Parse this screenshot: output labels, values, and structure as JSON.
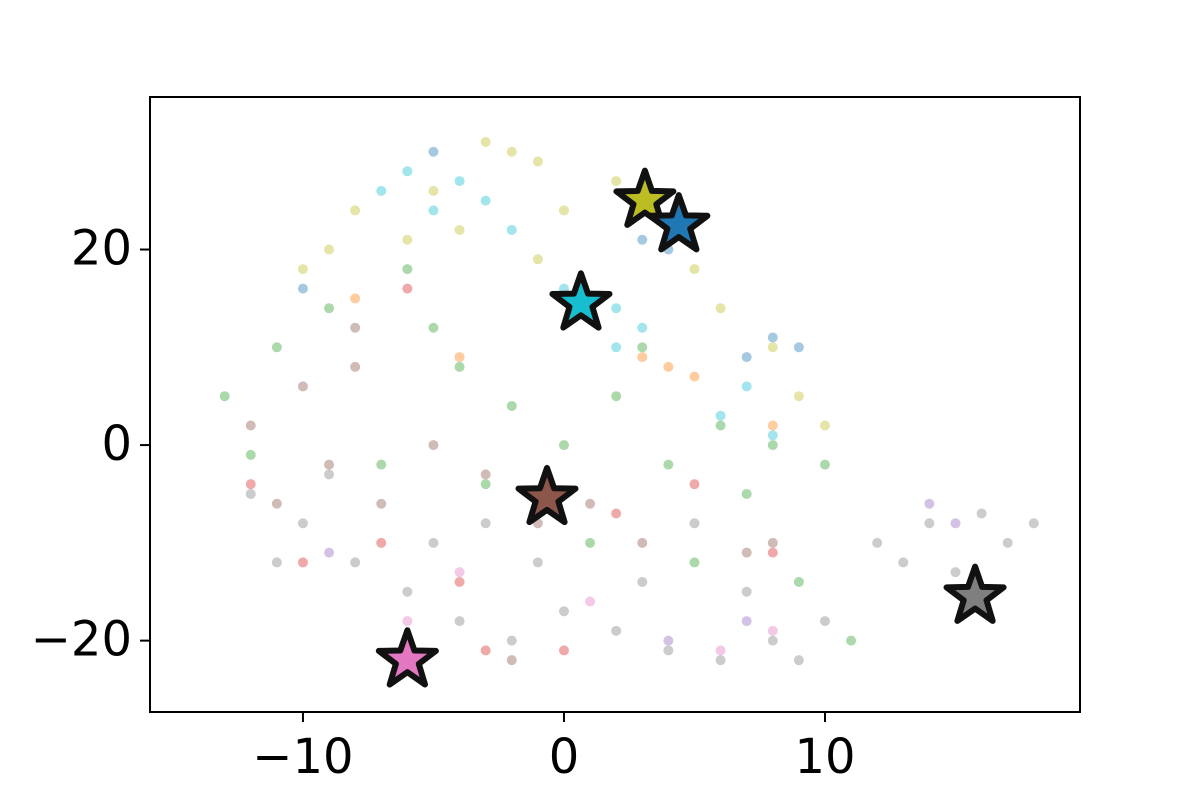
{
  "chart_data": {
    "type": "scatter",
    "xlim": [
      -15.86,
      19.77
    ],
    "ylim": [
      -27.3,
      35.6
    ],
    "xticks": [
      {
        "value": -10,
        "label": "−10"
      },
      0,
      10
    ],
    "yticks": [
      {
        "value": -20,
        "label": "−20"
      },
      0,
      20
    ],
    "grid": false,
    "series": [
      {
        "color": "#7f7f7f",
        "x": [
          -12,
          -10,
          -8,
          -6,
          -4,
          -2,
          0,
          2,
          4,
          6,
          8,
          10,
          12,
          14,
          16,
          17,
          15,
          13,
          -9,
          -5,
          -1,
          3,
          7,
          -11,
          9,
          18,
          -3,
          5
        ],
        "y": [
          -5,
          -8,
          -12,
          -15,
          -18,
          -20,
          -17,
          -19,
          -21,
          -22,
          -20,
          -18,
          -10,
          -8,
          -7,
          -10,
          -13,
          -12,
          -3,
          -10,
          -12,
          -14,
          -15,
          -12,
          -22,
          -8,
          -8,
          -8
        ]
      },
      {
        "color": "#2ca02c",
        "x": [
          -13,
          -11,
          -9,
          -6,
          -4,
          -2,
          0,
          2,
          4,
          6,
          8,
          10,
          -7,
          -12,
          1,
          5,
          9,
          11,
          -5,
          3,
          7,
          -3
        ],
        "y": [
          5,
          10,
          14,
          18,
          8,
          4,
          0,
          5,
          -2,
          2,
          0,
          -2,
          -2,
          -1,
          -10,
          -12,
          -14,
          -20,
          12,
          10,
          -5,
          -4
        ]
      },
      {
        "color": "#8c564b",
        "x": [
          -12,
          -10,
          -8,
          -9,
          -7,
          -5,
          -3,
          -1,
          1,
          3,
          8,
          7,
          -6,
          -2,
          -8,
          -11
        ],
        "y": [
          2,
          6,
          8,
          -2,
          -6,
          0,
          -3,
          -8,
          -6,
          -10,
          -10,
          -11,
          -22,
          -22,
          12,
          -6
        ]
      },
      {
        "color": "#d62728",
        "x": [
          -10,
          -7,
          -4,
          0,
          2,
          8,
          -12,
          -6,
          -3,
          5
        ],
        "y": [
          -12,
          -10,
          -14,
          -21,
          -7,
          -11,
          -4,
          16,
          -21,
          -4
        ]
      },
      {
        "color": "#bcbd22",
        "x": [
          -2,
          -3,
          -1,
          -5,
          -8,
          -9,
          -4,
          0,
          2,
          5,
          6,
          8,
          9,
          10,
          -6,
          -10,
          -1
        ],
        "y": [
          30,
          31,
          29,
          26,
          24,
          20,
          22,
          24,
          27,
          18,
          14,
          10,
          5,
          2,
          21,
          18,
          19
        ]
      },
      {
        "color": "#17becf",
        "x": [
          -4,
          -5,
          -3,
          -6,
          -2,
          1,
          2,
          0,
          3,
          7,
          8,
          -7,
          2,
          6
        ],
        "y": [
          27,
          24,
          25,
          28,
          22,
          13,
          14,
          16,
          12,
          6,
          1,
          26,
          10,
          3
        ]
      },
      {
        "color": "#1f77b4",
        "x": [
          3,
          4,
          8,
          9,
          -5,
          -10,
          7
        ],
        "y": [
          21,
          20,
          11,
          10,
          30,
          16,
          9
        ]
      },
      {
        "color": "#ff7f0e",
        "x": [
          3,
          4,
          8,
          -4,
          -8,
          5
        ],
        "y": [
          9,
          8,
          2,
          9,
          15,
          7
        ]
      },
      {
        "color": "#9467bd",
        "x": [
          14,
          15,
          7,
          -9,
          4
        ],
        "y": [
          -6,
          -8,
          -18,
          -11,
          -20
        ]
      },
      {
        "color": "#e377c2",
        "x": [
          -6,
          -4,
          8,
          1,
          6
        ],
        "y": [
          -18,
          -13,
          -19,
          -16,
          -21
        ]
      }
    ],
    "stars": {
      "x": [
        3.1,
        4.4,
        0.65,
        -0.65,
        15.75,
        -6.0
      ],
      "y": [
        25.0,
        22.5,
        14.5,
        -5.4,
        -15.5,
        -22.0
      ],
      "colors": [
        "#bcbd22",
        "#1f77b4",
        "#17becf",
        "#8c564b",
        "#7f7f7f",
        "#e377c2"
      ]
    }
  }
}
